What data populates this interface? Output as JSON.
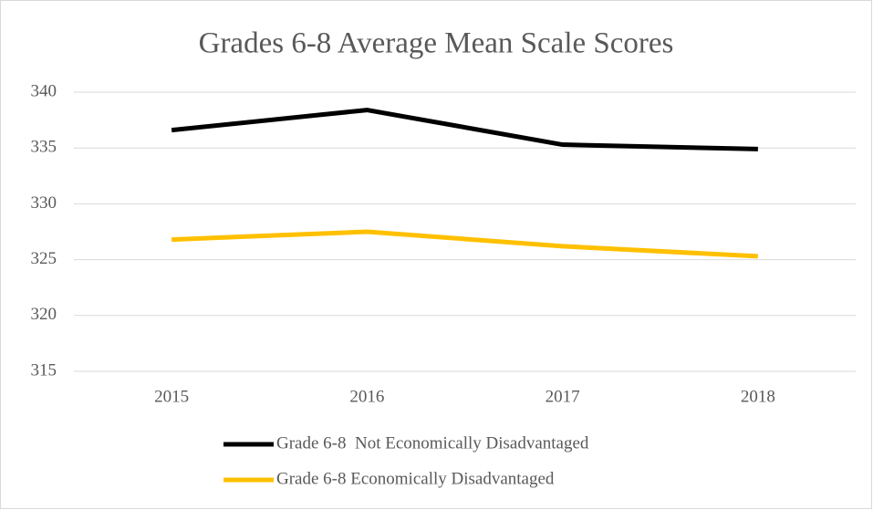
{
  "chart_data": {
    "type": "line",
    "title": "Grades 6-8 Average Mean Scale Scores",
    "categories": [
      "2015",
      "2016",
      "2017",
      "2018"
    ],
    "series": [
      {
        "name": "Grade 6-8  Not Economically Disadvantaged",
        "color": "#000000",
        "values": [
          336.6,
          338.4,
          335.3,
          334.9
        ]
      },
      {
        "name": "Grade 6-8 Economically Disadvantaged",
        "color": "#ffc000",
        "values": [
          326.8,
          327.5,
          326.2,
          325.3
        ]
      }
    ],
    "ylim": [
      315,
      340
    ],
    "yticks": [
      315,
      320,
      325,
      330,
      335,
      340
    ],
    "grid": true,
    "legend": "bottom"
  }
}
